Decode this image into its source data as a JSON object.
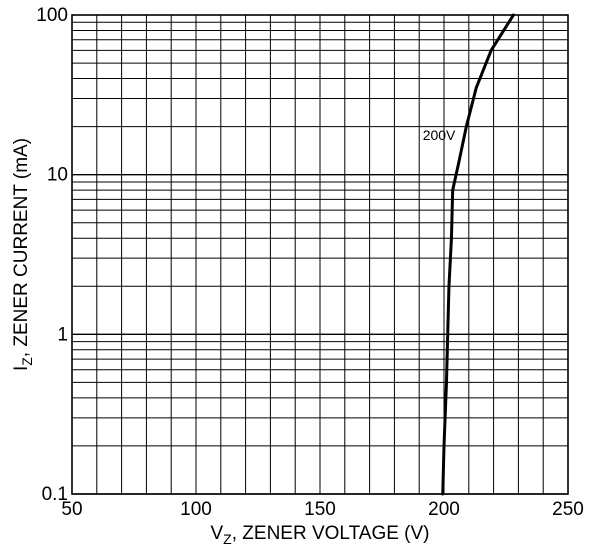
{
  "chart_data": {
    "type": "line",
    "title": "",
    "xlabel": {
      "prefix": "V",
      "subscript": "Z",
      "suffix": ", ZENER VOLTAGE (V)"
    },
    "ylabel": {
      "prefix": "I",
      "subscript": "Z",
      "suffix": ", ZENER CURRENT (mA)"
    },
    "xlim": [
      50,
      250
    ],
    "ylim": [
      0.1,
      100
    ],
    "yscale": "log",
    "grid": true,
    "xticks": [
      50,
      100,
      150,
      200,
      250
    ],
    "xtick_labels": [
      "50",
      "100",
      "150",
      "200",
      "250"
    ],
    "yticks": [
      0.1,
      1,
      10,
      100
    ],
    "ytick_labels": [
      "0.1",
      "1",
      "10",
      "100"
    ],
    "series": [
      {
        "name": "200V",
        "x": [
          199.5,
          200,
          201,
          201.5,
          202,
          203,
          203.5,
          206,
          209,
          213,
          219,
          228
        ],
        "y": [
          0.1,
          0.2,
          0.5,
          1,
          2,
          4,
          8,
          12,
          20,
          35,
          60,
          100
        ]
      }
    ]
  }
}
